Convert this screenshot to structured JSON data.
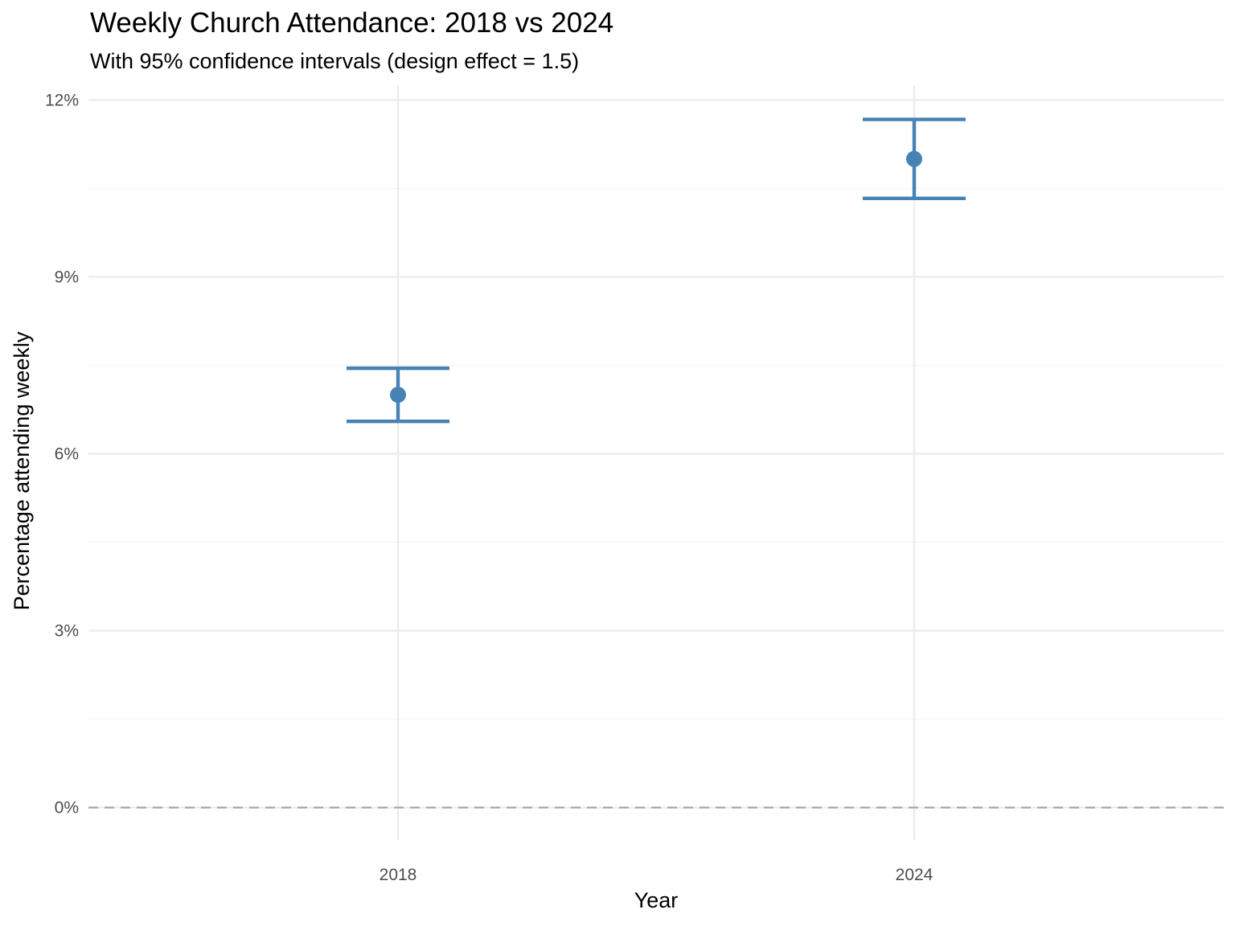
{
  "chart_data": {
    "type": "scatter",
    "title": "Weekly Church Attendance: 2018 vs 2024",
    "subtitle": "With 95% confidence intervals (design effect = 1.5)",
    "xlabel": "Year",
    "ylabel": "Percentage attending weekly",
    "categories": [
      "2018",
      "2024"
    ],
    "values": [
      7.0,
      11.0
    ],
    "ci_lower": [
      6.55,
      10.33
    ],
    "ci_upper": [
      7.45,
      11.67
    ],
    "ylim": [
      -0.55,
      12.25
    ],
    "yticks": [
      0,
      3,
      6,
      9,
      12
    ],
    "ytick_labels": [
      "0%",
      "3%",
      "6%",
      "9%",
      "12%"
    ],
    "reference_line": {
      "y": 0,
      "style": "dashed"
    },
    "grid": true,
    "legend": "none",
    "colors": {
      "series": "#4682b4",
      "reference_line": "#a6a6a6",
      "grid": "#ebebeb"
    }
  }
}
